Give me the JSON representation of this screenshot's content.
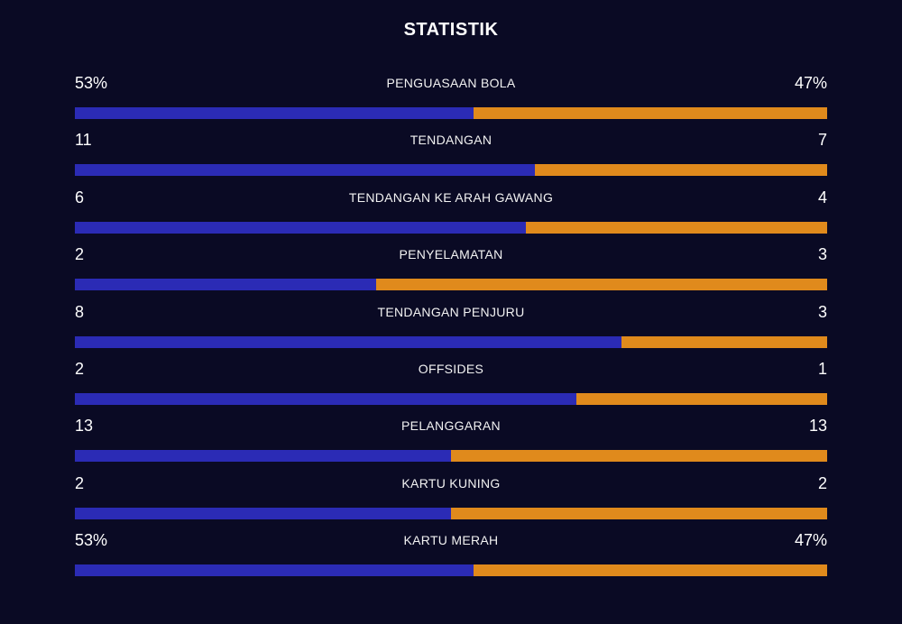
{
  "title": "STATISTIK",
  "colors": {
    "home": "#2b2bb5",
    "away": "#e08a1c",
    "background": "#0a0a24"
  },
  "stats": [
    {
      "label": "PENGUASAAN BOLA",
      "home": "53%",
      "away": "47%",
      "home_share": 0.53
    },
    {
      "label": "TENDANGAN",
      "home": "11",
      "away": "7",
      "home_share": 0.611
    },
    {
      "label": "TENDANGAN KE ARAH GAWANG",
      "home": "6",
      "away": "4",
      "home_share": 0.6
    },
    {
      "label": "PENYELAMATAN",
      "home": "2",
      "away": "3",
      "home_share": 0.4
    },
    {
      "label": "TENDANGAN PENJURU",
      "home": "8",
      "away": "3",
      "home_share": 0.727
    },
    {
      "label": "OFFSIDES",
      "home": "2",
      "away": "1",
      "home_share": 0.667
    },
    {
      "label": "PELANGGARAN",
      "home": "13",
      "away": "13",
      "home_share": 0.5
    },
    {
      "label": "KARTU KUNING",
      "home": "2",
      "away": "2",
      "home_share": 0.5
    },
    {
      "label": "KARTU MERAH",
      "home": "53%",
      "away": "47%",
      "home_share": 0.53
    }
  ]
}
